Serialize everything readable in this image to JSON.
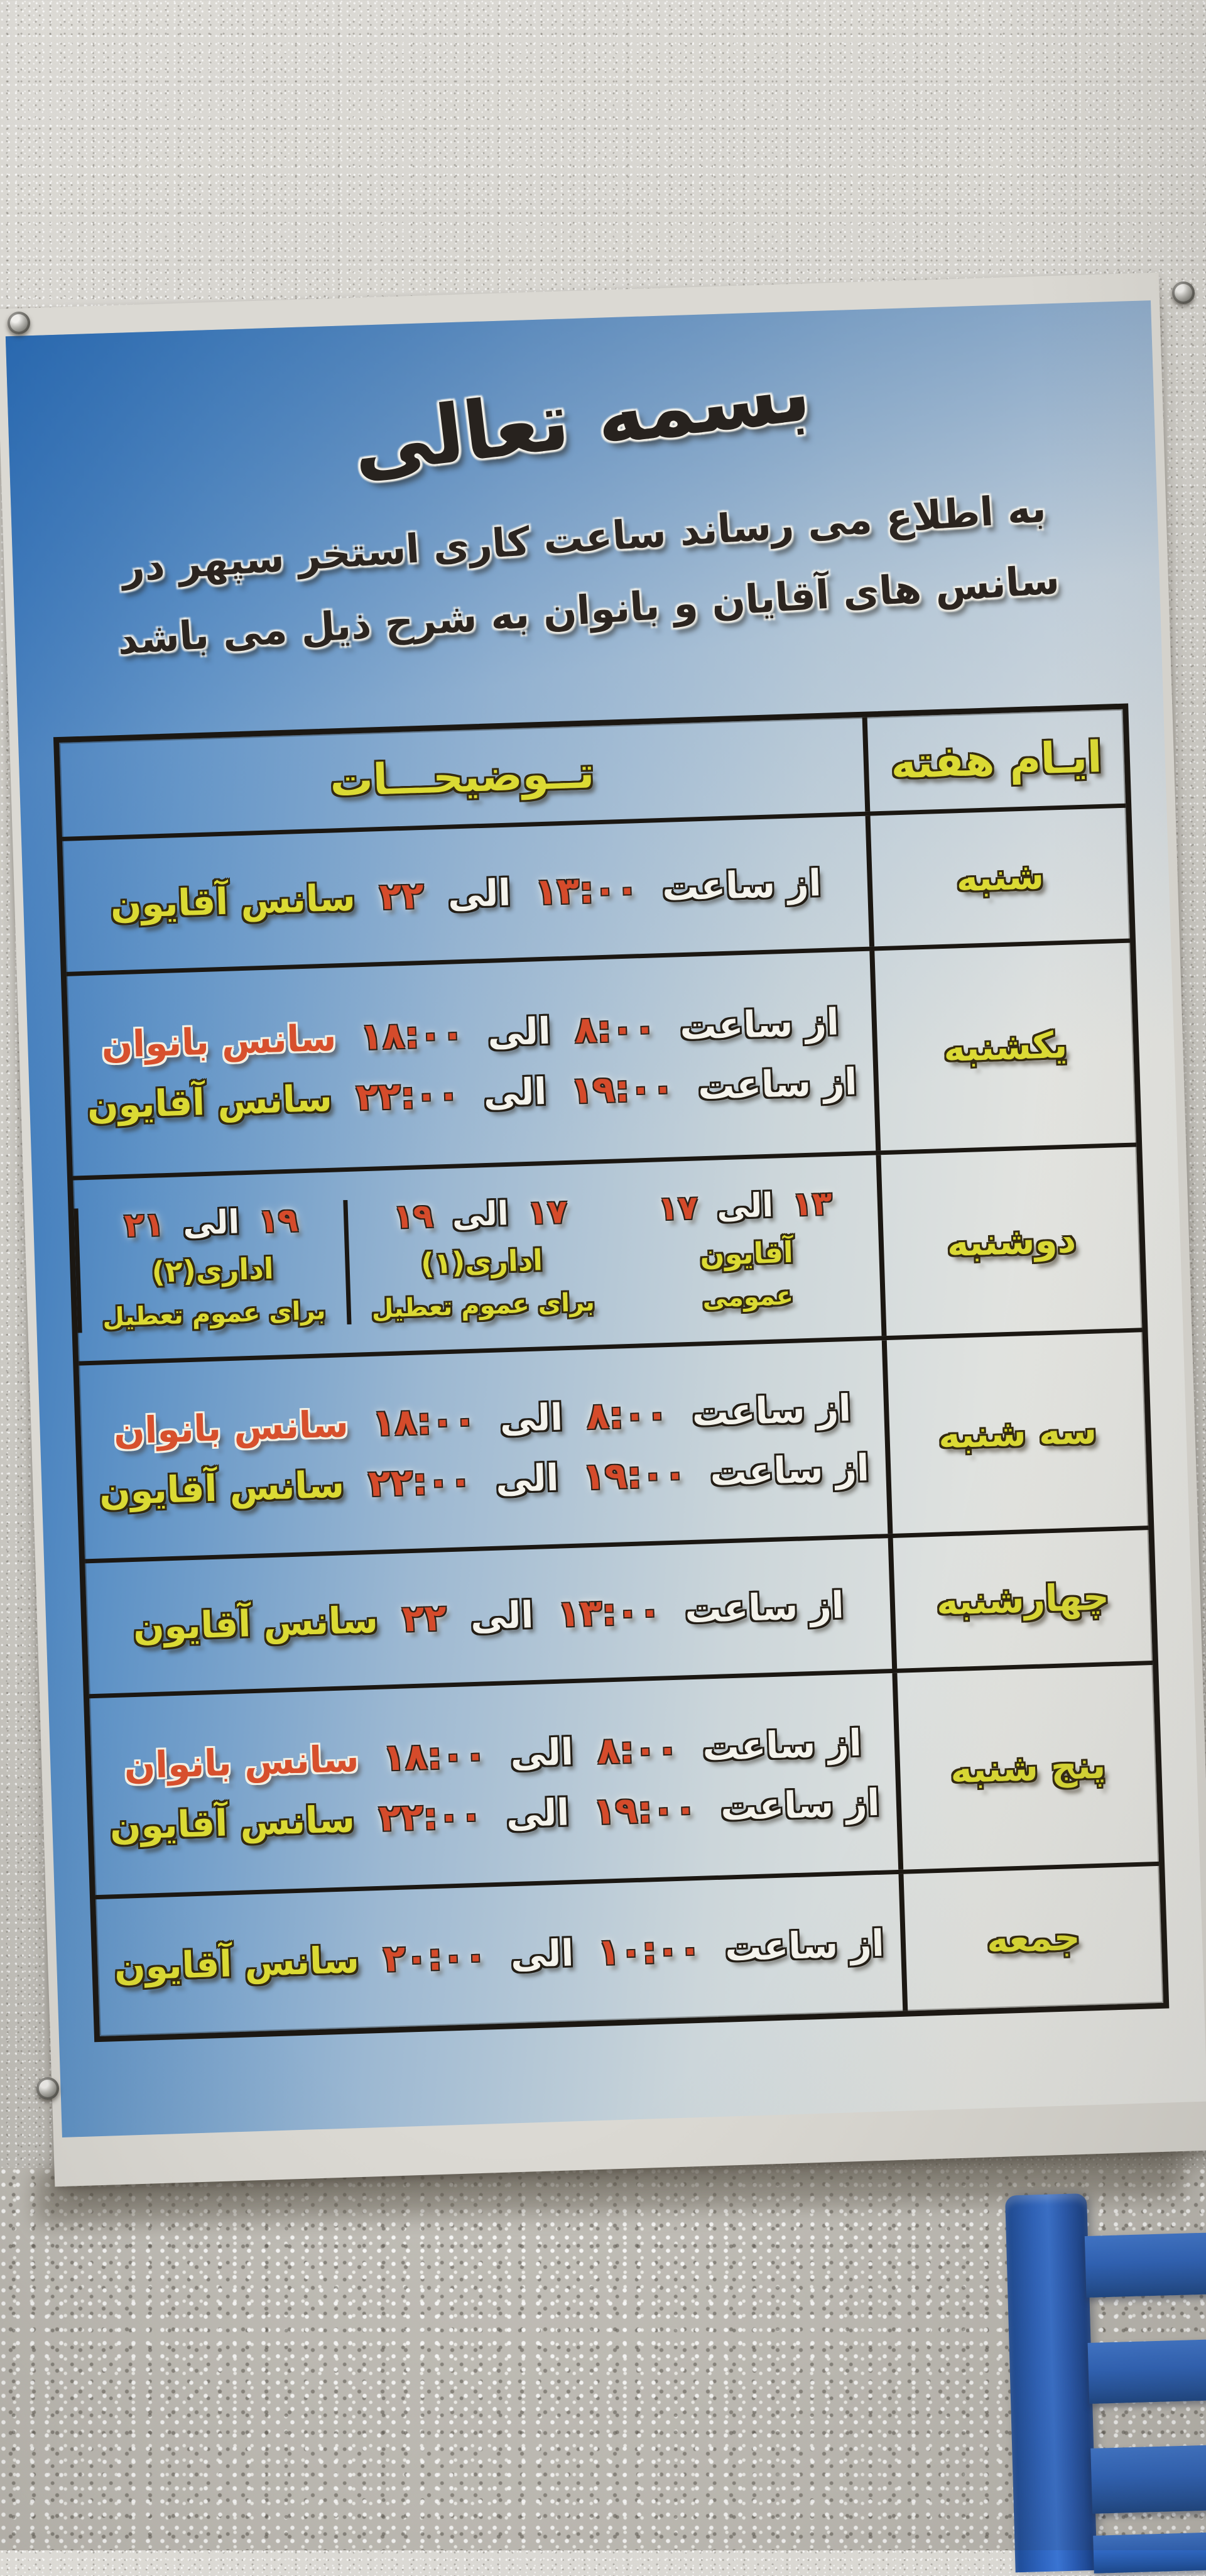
{
  "poster": {
    "bismillah": "بسمه تعالی",
    "intro_line1": "به اطلاع می رساند ساعت کاری استخر سپهر در",
    "intro_line2": "سانس های آقایان و بانوان به شرح ذیل می باشد",
    "table": {
      "header": {
        "details": "تــوضیحـــات",
        "days": "ایـام هفته"
      },
      "rows": [
        {
          "day": "شنبه",
          "lines": [
            {
              "pre": "از ساعت",
              "from": "۱۳:۰۰",
              "ila": "الی",
              "to": "۲۲",
              "session": "سانس آقایون"
            }
          ]
        },
        {
          "day": "یکشنبه",
          "lines": [
            {
              "pre": "از ساعت",
              "from": "۸:۰۰",
              "ila": "الی",
              "to": "۱۸:۰۰",
              "session": "سانس بانوان"
            },
            {
              "pre": "از ساعت",
              "from": "۱۹:۰۰",
              "ila": "الی",
              "to": "۲۲:۰۰",
              "session": "سانس آقایون"
            }
          ]
        },
        {
          "day": "دوشنبه",
          "cells": [
            {
              "from": "۱۳",
              "ila": "الی",
              "to": "۱۷",
              "line1": "آقایون",
              "line2": "عمومی"
            },
            {
              "from": "۱۷",
              "ila": "الی",
              "to": "۱۹",
              "line1": "اداری(۱)",
              "line2": "برای عموم تعطیل"
            },
            {
              "from": "۱۹",
              "ila": "الی",
              "to": "۲۱",
              "line1": "اداری(۲)",
              "line2": "برای عموم تعطیل"
            }
          ]
        },
        {
          "day": "سه شنبه",
          "lines": [
            {
              "pre": "از ساعت",
              "from": "۸:۰۰",
              "ila": "الی",
              "to": "۱۸:۰۰",
              "session": "سانس بانوان"
            },
            {
              "pre": "از ساعت",
              "from": "۱۹:۰۰",
              "ila": "الی",
              "to": "۲۲:۰۰",
              "session": "سانس آقایون"
            }
          ]
        },
        {
          "day": "چهارشنبه",
          "lines": [
            {
              "pre": "از ساعت",
              "from": "۱۳:۰۰",
              "ila": "الی",
              "to": "۲۲",
              "session": "سانس آقایون"
            }
          ]
        },
        {
          "day": "پنج شنبه",
          "lines": [
            {
              "pre": "از ساعت",
              "from": "۸:۰۰",
              "ila": "الی",
              "to": "۱۸:۰۰",
              "session": "سانس بانوان"
            },
            {
              "pre": "از ساعت",
              "from": "۱۹:۰۰",
              "ila": "الی",
              "to": "۲۲:۰۰",
              "session": "سانس آقایون"
            }
          ]
        },
        {
          "day": "جمعه",
          "lines": [
            {
              "pre": "از ساعت",
              "from": "۱۰:۰۰",
              "ila": "الی",
              "to": "۲۰:۰۰",
              "session": "سانس آقایون"
            }
          ]
        }
      ]
    }
  },
  "colors": {
    "poster_blue": "#2f6fb6",
    "text_yellow": "#dbda34",
    "text_red": "#d54b2b",
    "text_white": "#f4f3ec",
    "table_border": "#1b1712",
    "chair_blue": "#2f66c2",
    "wall_gray": "#cdcbc5"
  },
  "scene": {
    "pins": "thumbtack-icon",
    "chair": "blue-chair-back"
  }
}
